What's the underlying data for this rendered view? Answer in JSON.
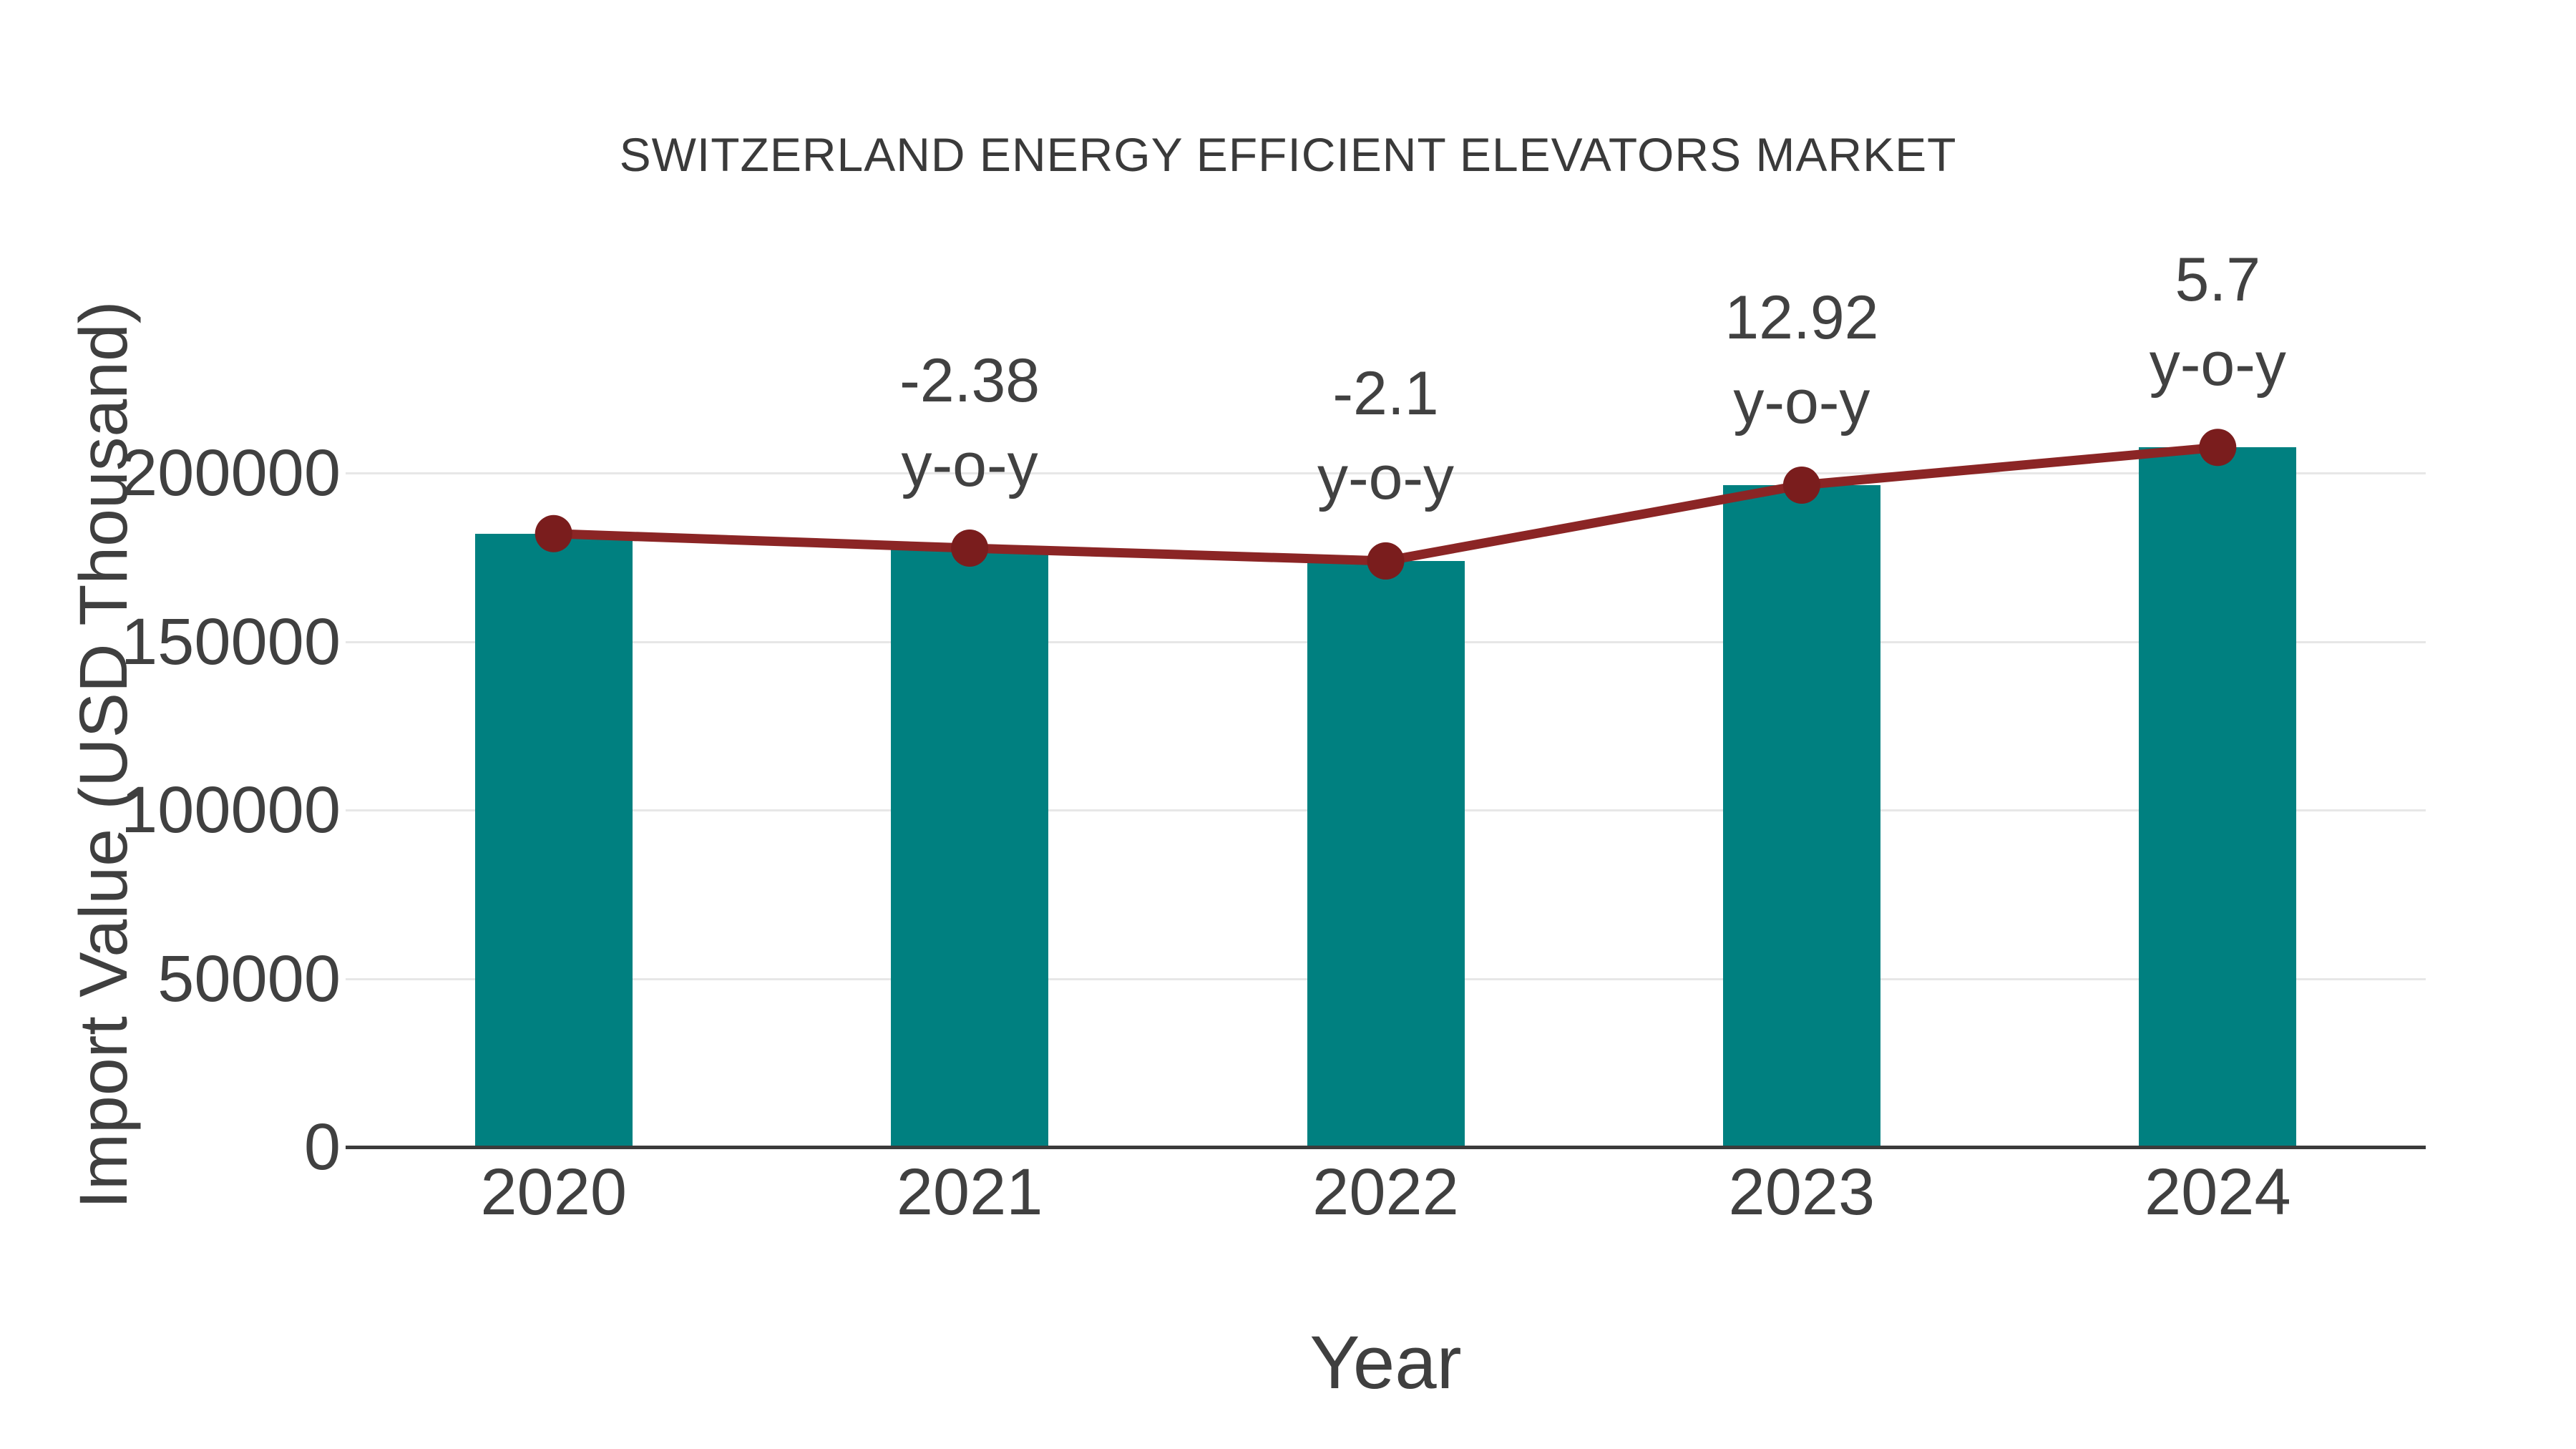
{
  "chart_data": {
    "type": "bar",
    "title": "SWITZERLAND ENERGY EFFICIENT ELEVATORS MARKET",
    "xlabel": "Year",
    "ylabel": "Import Value (USD Thousand)",
    "categories": [
      "2020",
      "2021",
      "2022",
      "2023",
      "2024"
    ],
    "values": [
      182000,
      177700,
      173900,
      196400,
      207600
    ],
    "line_overlay": {
      "name": "import value trend with y-o-y growth markers",
      "follows_bar_tops": true
    },
    "yoy_labels": [
      null,
      "-2.38",
      "-2.1",
      "12.92",
      "5.7"
    ],
    "yoy_suffix": "y-o-y",
    "yticks": [
      0,
      50000,
      100000,
      150000,
      200000
    ],
    "ylim": [
      0,
      220000
    ],
    "grid": "horizontal",
    "legend": false,
    "colors": {
      "bar": "#008080",
      "line": "#8B2525",
      "marker": "#7A1D1D",
      "grid": "#E7E7E7",
      "axis": "#3B3B3B",
      "text": "#404040"
    }
  }
}
